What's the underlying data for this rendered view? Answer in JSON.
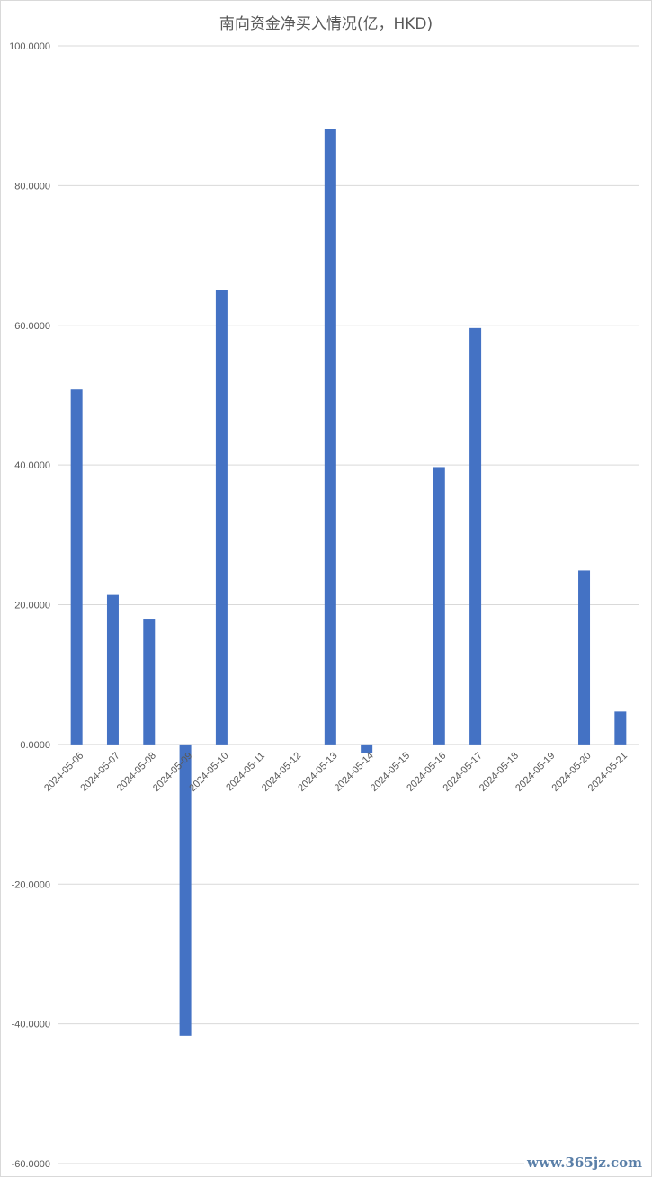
{
  "chart_data": {
    "type": "bar",
    "title": "南向资金净买入情况(亿，HKD)",
    "categories": [
      "2024-05-06",
      "2024-05-07",
      "2024-05-08",
      "2024-05-09",
      "2024-05-10",
      "2024-05-11",
      "2024-05-12",
      "2024-05-13",
      "2024-05-14",
      "2024-05-15",
      "2024-05-16",
      "2024-05-17",
      "2024-05-18",
      "2024-05-19",
      "2024-05-20",
      "2024-05-21"
    ],
    "values": [
      50.8,
      21.4,
      18.0,
      -41.7,
      65.1,
      0,
      0,
      88.1,
      -1.2,
      0,
      39.7,
      59.6,
      0,
      0,
      24.9,
      4.7
    ],
    "ylim": [
      -60,
      100
    ],
    "yticks": [
      100,
      80,
      60,
      40,
      20,
      0,
      -20,
      -40,
      -60
    ],
    "ytick_labels": [
      "100.0000",
      "80.0000",
      "60.0000",
      "40.0000",
      "20.0000",
      "0.0000",
      "-20.0000",
      "-40.0000",
      "-60.0000"
    ],
    "xlabel": "",
    "ylabel": "",
    "grid": true,
    "bar_color": "#4472c4",
    "grid_color": "#d9d9d9"
  },
  "watermark": "www.365jz.com"
}
